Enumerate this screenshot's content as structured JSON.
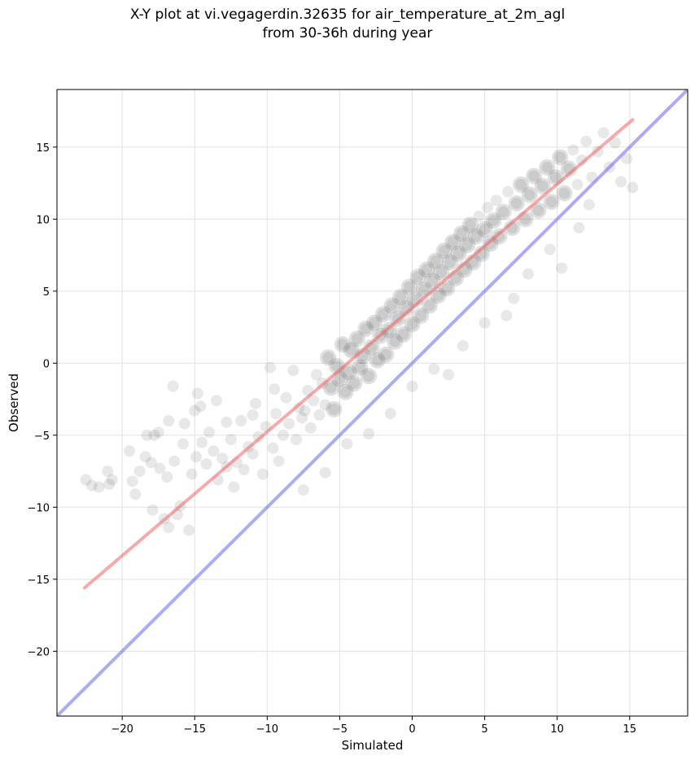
{
  "chart_data": {
    "type": "scatter",
    "title_lines": [
      "X-Y plot at vi.vegagerdin.32635 for air_temperature_at_2m_agl",
      "from 30-36h during year"
    ],
    "xlabel": "Simulated",
    "ylabel": "Observed",
    "xlim": [
      -24.5,
      19
    ],
    "ylim": [
      -24.5,
      19
    ],
    "xticks": [
      -20,
      -15,
      -10,
      -5,
      0,
      5,
      10,
      15
    ],
    "yticks": [
      -20,
      -15,
      -10,
      -5,
      0,
      5,
      10,
      15
    ],
    "xtick_labels": [
      "−20",
      "−15",
      "−10",
      "−5",
      "0",
      "5",
      "10",
      "15"
    ],
    "ytick_labels": [
      "−20",
      "−15",
      "−10",
      "−5",
      "0",
      "5",
      "10",
      "15"
    ],
    "grid": true,
    "series": [
      {
        "kind": "points",
        "color": "#000000",
        "points": [
          [
            -22.5,
            -8.1
          ],
          [
            -22.1,
            -8.5
          ],
          [
            -21.6,
            -8.6
          ],
          [
            -20.9,
            -8.4
          ],
          [
            -20.7,
            -8.1
          ],
          [
            -19.3,
            -8.2
          ],
          [
            -19.1,
            -9.1
          ],
          [
            -18.8,
            -7.5
          ],
          [
            -18.4,
            -6.5
          ],
          [
            -18.3,
            -5.0
          ],
          [
            -17.9,
            -10.2
          ],
          [
            -17.8,
            -5.0
          ],
          [
            -17.5,
            -4.8
          ],
          [
            -17.4,
            -7.3
          ],
          [
            -17.1,
            -10.8
          ],
          [
            -16.9,
            -7.9
          ],
          [
            -16.8,
            -11.4
          ],
          [
            -16.5,
            -1.6
          ],
          [
            -16.4,
            -6.8
          ],
          [
            -16.2,
            -10.5
          ],
          [
            -16.0,
            -9.9
          ],
          [
            -15.8,
            -5.6
          ],
          [
            -15.7,
            -4.2
          ],
          [
            -15.4,
            -11.6
          ],
          [
            -15.2,
            -7.7
          ],
          [
            -14.9,
            -6.5
          ],
          [
            -14.8,
            -2.1
          ],
          [
            -14.6,
            -3.0
          ],
          [
            -14.5,
            -5.5
          ],
          [
            -14.2,
            -7.0
          ],
          [
            -14.0,
            -4.8
          ],
          [
            -13.7,
            -6.1
          ],
          [
            -13.4,
            -8.1
          ],
          [
            -13.1,
            -6.6
          ],
          [
            -12.8,
            -7.2
          ],
          [
            -12.5,
            -5.3
          ],
          [
            -12.3,
            -8.6
          ],
          [
            -12.1,
            -6.9
          ],
          [
            -11.8,
            -4.0
          ],
          [
            -11.6,
            -7.4
          ],
          [
            -11.3,
            -5.8
          ],
          [
            -11.0,
            -6.3
          ],
          [
            -10.8,
            -2.8
          ],
          [
            -10.6,
            -5.1
          ],
          [
            -10.3,
            -7.7
          ],
          [
            -10.1,
            -4.4
          ],
          [
            -9.8,
            -0.3
          ],
          [
            -9.6,
            -5.9
          ],
          [
            -9.4,
            -3.5
          ],
          [
            -9.2,
            -6.8
          ],
          [
            -8.9,
            -5.0
          ],
          [
            -8.7,
            -2.4
          ],
          [
            -8.5,
            -4.2
          ],
          [
            -8.2,
            -0.5
          ],
          [
            -8.0,
            -5.3
          ],
          [
            -7.8,
            -3.1
          ],
          [
            -7.6,
            -3.8
          ],
          [
            -7.4,
            -3.3
          ],
          [
            -7.2,
            -1.9
          ],
          [
            -7.0,
            -4.5
          ],
          [
            -6.8,
            -2.6
          ],
          [
            -6.6,
            -0.8
          ],
          [
            -6.4,
            -3.6
          ],
          [
            -6.2,
            -1.4
          ],
          [
            -6.0,
            -2.9
          ],
          [
            -5.8,
            0.4
          ],
          [
            -5.6,
            -1.7
          ],
          [
            -5.4,
            -3.2
          ],
          [
            -5.2,
            -0.2
          ],
          [
            -5.0,
            -1.1
          ],
          [
            -4.8,
            1.3
          ],
          [
            -4.6,
            -2.0
          ],
          [
            -4.4,
            -0.6
          ],
          [
            -4.2,
            0.9
          ],
          [
            -4.0,
            -1.4
          ],
          [
            -3.8,
            1.7
          ],
          [
            -3.6,
            -0.3
          ],
          [
            -3.4,
            0.5
          ],
          [
            -3.2,
            2.4
          ],
          [
            -3.0,
            -0.9
          ],
          [
            -2.8,
            1.1
          ],
          [
            -2.6,
            2.8
          ],
          [
            -2.4,
            0.2
          ],
          [
            -2.2,
            1.9
          ],
          [
            -2.0,
            3.4
          ],
          [
            -1.8,
            0.6
          ],
          [
            -1.6,
            2.3
          ],
          [
            -1.4,
            4.0
          ],
          [
            -1.2,
            1.5
          ],
          [
            -1.0,
            3.1
          ],
          [
            -0.8,
            4.6
          ],
          [
            -0.6,
            2.0
          ],
          [
            -0.4,
            3.8
          ],
          [
            -0.2,
            5.3
          ],
          [
            0.0,
            2.7
          ],
          [
            0.2,
            4.4
          ],
          [
            0.4,
            6.0
          ],
          [
            0.6,
            3.3
          ],
          [
            0.8,
            5.1
          ],
          [
            1.0,
            6.5
          ],
          [
            1.2,
            4.0
          ],
          [
            1.4,
            5.7
          ],
          [
            1.6,
            7.1
          ],
          [
            1.8,
            4.7
          ],
          [
            2.0,
            6.3
          ],
          [
            2.2,
            7.8
          ],
          [
            2.4,
            5.2
          ],
          [
            2.6,
            7.0
          ],
          [
            2.8,
            8.4
          ],
          [
            3.0,
            5.9
          ],
          [
            3.2,
            7.6
          ],
          [
            3.4,
            9.0
          ],
          [
            3.6,
            6.5
          ],
          [
            3.8,
            8.2
          ],
          [
            4.0,
            9.6
          ],
          [
            4.2,
            7.0
          ],
          [
            4.4,
            8.8
          ],
          [
            4.6,
            10.2
          ],
          [
            4.8,
            7.6
          ],
          [
            5.0,
            9.3
          ],
          [
            5.2,
            10.8
          ],
          [
            5.4,
            8.3
          ],
          [
            5.6,
            9.9
          ],
          [
            5.8,
            11.3
          ],
          [
            6.0,
            8.8
          ],
          [
            6.3,
            10.5
          ],
          [
            6.6,
            11.9
          ],
          [
            6.9,
            9.4
          ],
          [
            7.2,
            11.1
          ],
          [
            7.5,
            12.4
          ],
          [
            7.8,
            10.0
          ],
          [
            8.1,
            11.7
          ],
          [
            8.4,
            13.0
          ],
          [
            8.7,
            10.6
          ],
          [
            9.0,
            12.3
          ],
          [
            9.3,
            13.6
          ],
          [
            9.6,
            11.2
          ],
          [
            9.9,
            12.9
          ],
          [
            10.2,
            14.3
          ],
          [
            10.5,
            11.8
          ],
          [
            10.8,
            13.5
          ],
          [
            11.1,
            14.8
          ],
          [
            11.4,
            12.4
          ],
          [
            11.7,
            14.1
          ],
          [
            12.0,
            15.4
          ],
          [
            12.4,
            12.9
          ],
          [
            12.8,
            14.7
          ],
          [
            13.2,
            16.0
          ],
          [
            13.6,
            13.6
          ],
          [
            14.0,
            15.3
          ],
          [
            14.4,
            12.6
          ],
          [
            14.8,
            14.2
          ],
          [
            15.2,
            12.2
          ],
          [
            -3.0,
            -4.9
          ],
          [
            -1.5,
            -3.5
          ],
          [
            0.0,
            -1.6
          ],
          [
            1.5,
            -0.4
          ],
          [
            2.5,
            -0.8
          ],
          [
            -6.0,
            -7.6
          ],
          [
            -7.5,
            -8.8
          ],
          [
            -4.5,
            -5.6
          ],
          [
            3.5,
            1.2
          ],
          [
            5.0,
            2.8
          ],
          [
            7.0,
            4.5
          ],
          [
            8.0,
            6.2
          ],
          [
            9.5,
            7.9
          ],
          [
            10.3,
            6.6
          ],
          [
            6.5,
            3.3
          ],
          [
            11.5,
            9.4
          ],
          [
            12.2,
            11.0
          ],
          [
            -9.5,
            -1.8
          ],
          [
            -11.0,
            -3.6
          ],
          [
            -12.8,
            -4.1
          ],
          [
            -13.5,
            -2.6
          ],
          [
            -15.0,
            -3.3
          ],
          [
            -16.8,
            -4.0
          ],
          [
            -18.0,
            -6.9
          ],
          [
            -19.5,
            -6.1
          ],
          [
            -21.0,
            -7.5
          ]
        ]
      },
      {
        "kind": "fit-line",
        "color": "#ee6666",
        "points": [
          [
            -22.6,
            -15.6
          ],
          [
            15.2,
            16.9
          ]
        ]
      },
      {
        "kind": "identity-line",
        "color": "#6666ee",
        "points": [
          [
            -24.5,
            -24.5
          ],
          [
            19.0,
            19.0
          ]
        ]
      }
    ]
  }
}
